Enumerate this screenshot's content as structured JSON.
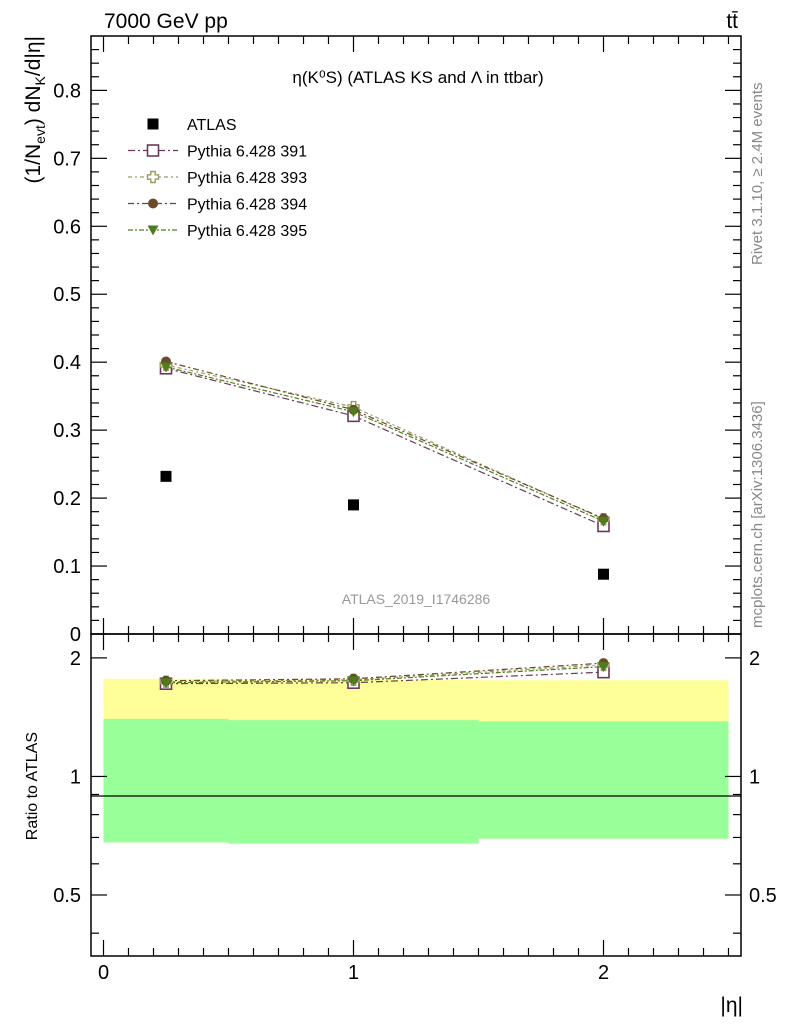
{
  "header": {
    "energy_label": "7000 GeV pp",
    "process_label": "tt̄",
    "plot_title": "η(K⁰S) (ATLAS KS and Λ in ttbar)",
    "analysis_id": "ATLAS_2019_I1746286",
    "side_rivet": "Rivet 3.1.10, ≥ 2.4M events",
    "side_site": "mcplots.cern.ch [arXiv:1306.3436]"
  },
  "chart_data": [
    {
      "type": "scatter",
      "title": "η(K⁰S) (ATLAS KS and Λ in ttbar)",
      "ylabel": "(1/N_evt) dN_K/d|η|",
      "xlabel": "|η|",
      "xlim": [
        -0.05,
        2.55
      ],
      "ylim": [
        0,
        0.88
      ],
      "x_ticks": [
        "0",
        "1",
        "2"
      ],
      "y_ticks": [
        "0",
        "0.1",
        "0.2",
        "0.3",
        "0.4",
        "0.5",
        "0.6",
        "0.7",
        "0.8"
      ],
      "legend_position": "top-left",
      "x": [
        0.25,
        1.0,
        2.0
      ],
      "series": [
        {
          "name": "ATLAS",
          "values": [
            0.232,
            0.19,
            0.088
          ],
          "color": "#000000",
          "marker": "filled-square"
        },
        {
          "name": "Pythia 6.428 391",
          "values": [
            0.391,
            0.321,
            0.159
          ],
          "color": "#6b3a5a",
          "marker": "open-square"
        },
        {
          "name": "Pythia 6.428 393",
          "values": [
            0.396,
            0.334,
            0.169
          ],
          "color": "#9b9b62",
          "marker": "open-cross"
        },
        {
          "name": "Pythia 6.428 394",
          "values": [
            0.401,
            0.33,
            0.17
          ],
          "color": "#6b4a2a",
          "marker": "filled-circle"
        },
        {
          "name": "Pythia 6.428 395",
          "values": [
            0.393,
            0.327,
            0.166
          ],
          "color": "#4e7d1e",
          "marker": "filled-triangle-down"
        }
      ]
    },
    {
      "type": "scatter",
      "ylabel": "Ratio to ATLAS",
      "xlabel": "|η|",
      "xlim": [
        -0.05,
        2.55
      ],
      "ylim": [
        0.35,
        2.3
      ],
      "y_ticks": [
        "0.5",
        "1",
        "2"
      ],
      "x": [
        0.25,
        1.0,
        2.0
      ],
      "reference_line": 1,
      "bands": {
        "bin_edges": [
          0,
          0.5,
          1.5,
          2.5
        ],
        "outer_low": [
          0.68,
          0.675,
          0.695
        ],
        "outer_high": [
          1.77,
          1.76,
          1.755
        ],
        "inner_low": [
          0.68,
          0.675,
          0.695
        ],
        "inner_high": [
          1.4,
          1.39,
          1.38
        ],
        "outer_color": "#ffff99",
        "inner_color": "#99ff99"
      },
      "series": [
        {
          "name": "Pythia 6.428 391",
          "values": [
            1.72,
            1.73,
            1.84
          ]
        },
        {
          "name": "Pythia 6.428 393",
          "values": [
            1.74,
            1.76,
            1.92
          ]
        },
        {
          "name": "Pythia 6.428 394",
          "values": [
            1.75,
            1.77,
            1.94
          ]
        },
        {
          "name": "Pythia 6.428 395",
          "values": [
            1.73,
            1.75,
            1.9
          ]
        }
      ]
    }
  ]
}
